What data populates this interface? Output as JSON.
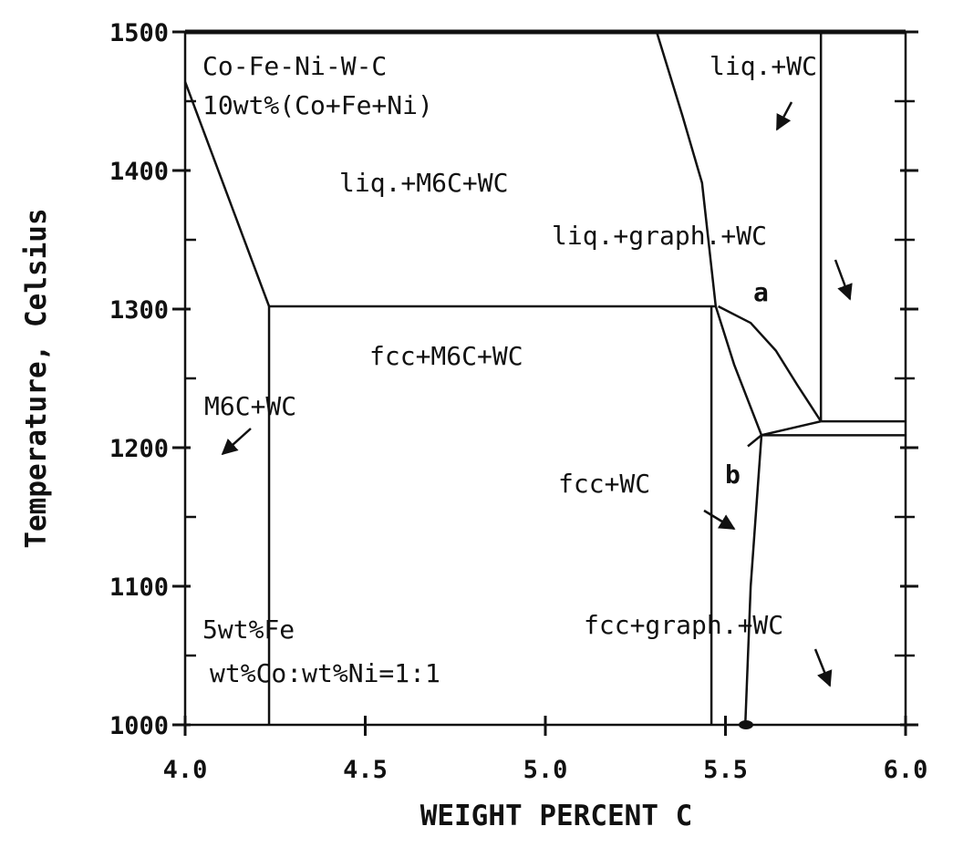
{
  "chart_data": {
    "type": "line",
    "x_label": "WEIGHT PERCENT C",
    "y_label": "Temperature, Celsius",
    "xlim": [
      4.0,
      6.0
    ],
    "ylim": [
      1000,
      1500
    ],
    "xticks": [
      {
        "value": 4,
        "label": "4.0"
      },
      4.5,
      {
        "value": 5,
        "label": "5.0"
      },
      5.5,
      {
        "value": 6,
        "label": "6.0"
      }
    ],
    "yticks": [
      1000,
      1100,
      1200,
      1300,
      1400,
      1500
    ],
    "yminorticks": [
      1050,
      1150,
      1250,
      1350,
      1450
    ],
    "color": "#111111",
    "lines": [
      {
        "x": [
          4.0,
          4.233
        ],
        "y": [
          1464,
          1302
        ]
      },
      {
        "x": [
          4.233,
          5.473
        ],
        "y": [
          1302,
          1302
        ]
      },
      {
        "x": [
          4.233,
          4.233
        ],
        "y": [
          1302,
          1000
        ]
      },
      {
        "x": [
          5.309,
          5.38,
          5.435,
          5.473
        ],
        "y": [
          1500,
          1440,
          1391,
          1302
        ]
      },
      {
        "x": [
          5.473,
          5.524,
          5.6
        ],
        "y": [
          1302,
          1260,
          1209
        ]
      },
      {
        "x": [
          5.48,
          5.57,
          5.64,
          5.7,
          5.765
        ],
        "y": [
          1302,
          1290,
          1270,
          1245,
          1219
        ]
      },
      {
        "x": [
          5.765,
          5.765
        ],
        "y": [
          1500,
          1219
        ]
      },
      {
        "x": [
          5.765,
          6.0
        ],
        "y": [
          1219,
          1219
        ]
      },
      {
        "x": [
          5.562,
          5.6,
          5.765
        ],
        "y": [
          1201,
          1209,
          1219
        ]
      },
      {
        "x": [
          5.6,
          6.0
        ],
        "y": [
          1209,
          1209
        ]
      },
      {
        "x": [
          5.461,
          5.461
        ],
        "y": [
          1302,
          1000
        ]
      },
      {
        "x": [
          5.6,
          5.57,
          5.555
        ],
        "y": [
          1209,
          1100,
          1000
        ]
      }
    ],
    "annotations": [
      "Co-Fe-Ni-W-C",
      "10wt%(Co+Fe+Ni)",
      "liq.+WC",
      "liq.+M6C+WC",
      "liq.+graph.+WC",
      "a",
      "fcc+M6C+WC",
      "M6C+WC",
      "b",
      "fcc+WC",
      "5wt%Fe",
      "fcc+graph.+WC",
      "wt%Co:wt%Ni=1:1"
    ]
  }
}
